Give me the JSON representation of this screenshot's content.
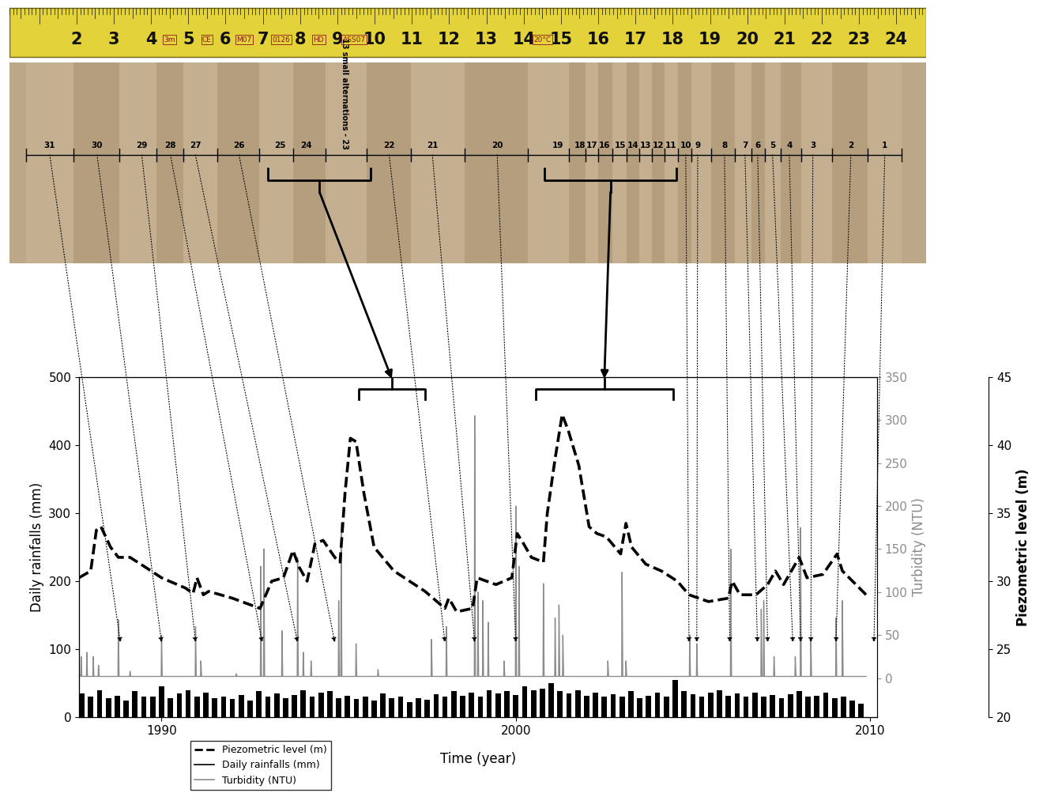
{
  "chart_data": {
    "type": "line",
    "x_label": "Time (year)",
    "y_label": "Daily rainfalls (mm)",
    "y2_label": "Turbidity (NTU)",
    "y3_label": "Piezometric level (m)",
    "xlim": [
      1987.67,
      2010.2
    ],
    "xticks": [
      1990,
      2000,
      2010
    ],
    "ylim": [
      0,
      500
    ],
    "yticks": [
      0,
      100,
      200,
      300,
      400,
      500
    ],
    "y2lim": [
      -45.5,
      350
    ],
    "y2ticks": [
      0,
      50,
      100,
      150,
      200,
      250,
      300,
      350
    ],
    "y3lim": [
      20,
      45
    ],
    "y3ticks": [
      20,
      25,
      30,
      35,
      40,
      45
    ],
    "legend": "lower left",
    "series": [
      {
        "name": "Piezometric level (m)",
        "type": "line",
        "line_style": "dashed",
        "color": "#000000",
        "axis": "y3",
        "x": [
          1987.67,
          1988.0,
          1988.16,
          1988.29,
          1988.56,
          1988.78,
          1989.11,
          1989.56,
          1990.0,
          1990.22,
          1990.67,
          1990.89,
          1991.0,
          1991.18,
          1991.33,
          1992.0,
          1992.78,
          1993.11,
          1993.44,
          1993.71,
          1993.89,
          1994.11,
          1994.33,
          1994.56,
          1994.89,
          1995.04,
          1995.18,
          1995.33,
          1995.49,
          1995.71,
          1996.0,
          1996.56,
          1997.44,
          1998.0,
          1998.11,
          1998.33,
          1998.78,
          1998.91,
          1999.44,
          1999.89,
          2000.04,
          2000.22,
          2000.44,
          2000.78,
          2000.89,
          2001.11,
          2001.31,
          2001.49,
          2001.78,
          2002.07,
          2002.29,
          2002.56,
          2002.96,
          2003.11,
          2003.27,
          2003.67,
          2004.11,
          2004.56,
          2004.89,
          2005.44,
          2006.0,
          2006.11,
          2006.33,
          2006.78,
          2007.11,
          2007.33,
          2007.56,
          2008.0,
          2008.22,
          2008.67,
          2009.07,
          2009.22,
          2009.89
        ],
        "values": [
          30.25,
          30.75,
          33.75,
          34.0,
          32.5,
          31.75,
          31.75,
          31.0,
          30.25,
          30.0,
          29.5,
          29.1,
          30.25,
          29.0,
          29.25,
          28.75,
          28.0,
          30.0,
          30.25,
          32.25,
          31.0,
          30.0,
          32.75,
          33.0,
          31.75,
          31.4,
          36.5,
          40.5,
          40.25,
          36.5,
          32.5,
          30.75,
          29.25,
          28.0,
          28.75,
          27.75,
          28.0,
          30.25,
          29.75,
          30.25,
          33.5,
          32.75,
          31.75,
          31.4,
          35.0,
          39.0,
          42.25,
          41.0,
          38.5,
          34.0,
          33.5,
          33.25,
          32.0,
          34.25,
          32.5,
          31.25,
          30.75,
          30.0,
          29.0,
          28.5,
          28.75,
          30.0,
          29.0,
          29.0,
          29.75,
          30.75,
          29.75,
          31.75,
          30.25,
          30.5,
          32.0,
          30.75,
          29.0
        ]
      },
      {
        "name": "Daily rainfalls (mm)",
        "type": "bar",
        "line_style": "solid",
        "color": "#000000",
        "axis": "y",
        "x": [
          1987.75,
          1988.0,
          1988.25,
          1988.5,
          1988.75,
          1989.0,
          1989.25,
          1989.5,
          1989.75,
          1990.0,
          1990.25,
          1990.5,
          1990.75,
          1991.0,
          1991.25,
          1991.5,
          1991.75,
          1992.0,
          1992.25,
          1992.5,
          1992.75,
          1993.0,
          1993.25,
          1993.5,
          1993.75,
          1994.0,
          1994.25,
          1994.5,
          1994.75,
          1995.0,
          1995.25,
          1995.5,
          1995.75,
          1996.0,
          1996.25,
          1996.5,
          1996.75,
          1997.0,
          1997.25,
          1997.5,
          1997.75,
          1998.0,
          1998.25,
          1998.5,
          1998.75,
          1999.0,
          1999.25,
          1999.5,
          1999.75,
          2000.0,
          2000.25,
          2000.5,
          2000.75,
          2001.0,
          2001.25,
          2001.5,
          2001.75,
          2002.0,
          2002.25,
          2002.5,
          2002.75,
          2003.0,
          2003.25,
          2003.5,
          2003.75,
          2004.0,
          2004.25,
          2004.5,
          2004.75,
          2005.0,
          2005.25,
          2005.5,
          2005.75,
          2006.0,
          2006.25,
          2006.5,
          2006.75,
          2007.0,
          2007.25,
          2007.5,
          2007.75,
          2008.0,
          2008.25,
          2008.5,
          2008.75,
          2009.0,
          2009.25,
          2009.5,
          2009.75
        ],
        "values": [
          35,
          30,
          40,
          28,
          32,
          25,
          38,
          30,
          30,
          45,
          28,
          35,
          40,
          30,
          36,
          28,
          30,
          27,
          33,
          25,
          38,
          30,
          35,
          28,
          33,
          40,
          30,
          36,
          38,
          28,
          32,
          27,
          30,
          25,
          35,
          28,
          30,
          22,
          28,
          26,
          34,
          30,
          38,
          32,
          36,
          30,
          40,
          35,
          38,
          33,
          45,
          40,
          42,
          50,
          38,
          35,
          40,
          32,
          36,
          30,
          34,
          30,
          38,
          28,
          32,
          36,
          30,
          55,
          38,
          34,
          30,
          36,
          40,
          32,
          35,
          30,
          36,
          30,
          33,
          28,
          34,
          38,
          30,
          32,
          36,
          28,
          30,
          25,
          20
        ]
      },
      {
        "name": "Turbidity (NTU)",
        "type": "line",
        "line_style": "solid",
        "color": "#8c8c8c",
        "axis": "y2",
        "x": [
          1987.67,
          1987.72,
          1987.73,
          1987.75,
          1987.88,
          1987.89,
          1987.91,
          1988.06,
          1988.07,
          1988.09,
          1988.21,
          1988.22,
          1988.24,
          1988.77,
          1988.78,
          1988.8,
          1989.1,
          1989.11,
          1989.13,
          1989.99,
          1990.0,
          1990.02,
          1990.95,
          1990.96,
          1990.98,
          1991.1,
          1991.11,
          1991.13,
          1992.1,
          1992.11,
          1992.13,
          1992.79,
          1992.8,
          1992.82,
          1992.88,
          1992.89,
          1992.91,
          1993.39,
          1993.4,
          1993.42,
          1993.83,
          1993.84,
          1993.86,
          1993.99,
          1994.0,
          1994.02,
          1994.21,
          1994.22,
          1994.24,
          1994.99,
          1995.0,
          1995.02,
          1995.06,
          1995.07,
          1995.09,
          1995.48,
          1995.49,
          1995.51,
          1996.1,
          1996.11,
          1996.13,
          1997.61,
          1997.62,
          1997.64,
          1998.03,
          1998.04,
          1998.06,
          1998.83,
          1998.84,
          1998.86,
          1998.92,
          1998.93,
          1998.95,
          1999.06,
          1999.07,
          1999.09,
          1999.21,
          1999.22,
          1999.24,
          1999.66,
          1999.67,
          1999.69,
          1999.99,
          2000.0,
          2000.02,
          2000.08,
          2000.09,
          2000.11,
          2000.77,
          2000.78,
          2000.8,
          2001.1,
          2001.11,
          2001.13,
          2001.21,
          2001.22,
          2001.24,
          2001.32,
          2001.33,
          2001.35,
          2002.59,
          2002.6,
          2002.62,
          2002.99,
          2003.0,
          2003.02,
          2003.1,
          2003.11,
          2003.13,
          2004.9,
          2004.91,
          2004.93,
          2005.1,
          2005.11,
          2005.13,
          2006.06,
          2006.07,
          2006.09,
          2006.92,
          2006.93,
          2006.95,
          2006.99,
          2007.0,
          2007.02,
          2007.28,
          2007.29,
          2007.31,
          2007.88,
          2007.89,
          2007.91,
          2008.03,
          2008.04,
          2008.06,
          2008.32,
          2008.33,
          2008.35,
          2009.03,
          2009.04,
          2009.06,
          2009.21,
          2009.22,
          2009.24,
          2009.89
        ],
        "values": [
          5,
          2,
          25,
          2,
          2,
          30,
          2,
          2,
          25,
          2,
          2,
          15,
          2,
          2,
          68,
          2,
          2,
          8,
          2,
          2,
          50,
          2,
          2,
          60,
          2,
          2,
          20,
          2,
          2,
          5,
          2,
          2,
          130,
          2,
          2,
          150,
          2,
          2,
          55,
          2,
          2,
          140,
          2,
          2,
          30,
          2,
          2,
          20,
          2,
          2,
          90,
          2,
          2,
          180,
          2,
          2,
          40,
          2,
          2,
          10,
          2,
          2,
          45,
          2,
          2,
          60,
          2,
          2,
          305,
          2,
          2,
          100,
          2,
          2,
          90,
          2,
          2,
          65,
          2,
          2,
          20,
          2,
          2,
          200,
          2,
          2,
          130,
          2,
          2,
          110,
          2,
          2,
          70,
          2,
          2,
          85,
          2,
          2,
          50,
          2,
          2,
          20,
          2,
          2,
          123,
          2,
          2,
          20,
          2,
          2,
          50,
          2,
          2,
          40,
          2,
          2,
          150,
          2,
          2,
          80,
          2,
          2,
          90,
          2,
          2,
          25,
          2,
          2,
          25,
          2,
          2,
          175,
          2,
          2,
          45,
          2,
          2,
          70,
          2,
          2,
          90,
          2,
          2
        ]
      }
    ]
  },
  "core": {
    "tape_range_cm": [
      0.2,
      24.8
    ],
    "tape_ticks": [
      2,
      3,
      4,
      5,
      6,
      7,
      8,
      9,
      10,
      11,
      12,
      13,
      14,
      15,
      16,
      17,
      18,
      19,
      20,
      21,
      22,
      23,
      24
    ],
    "tape_marks": [
      {
        "label": "3m",
        "position_cm": 4.5
      },
      {
        "label": "CE",
        "position_cm": 5.5
      },
      {
        "label": "M07",
        "position_cm": 6.5
      },
      {
        "label": "0126",
        "position_cm": 7.5
      },
      {
        "label": "HD",
        "position_cm": 8.5
      },
      {
        "label": "ASS07",
        "position_cm": 9.45
      },
      {
        "label": "20°C",
        "position_cm": 14.5
      }
    ],
    "layers": [
      {
        "label": "31",
        "position_cm": 1.28,
        "date": 1988.84
      },
      {
        "label": "30",
        "position_cm": 2.55,
        "date": 1990.0
      },
      {
        "label": "29",
        "position_cm": 3.75,
        "date": 1990.96
      },
      {
        "label": "28",
        "position_cm": 4.52,
        "date": 1992.84
      },
      {
        "label": "27",
        "position_cm": 5.19,
        "date": 1993.84
      },
      {
        "label": "26",
        "position_cm": 6.36,
        "date": 1994.89
      },
      {
        "label": "25",
        "position_cm": 7.46,
        "date": null
      },
      {
        "label": "24",
        "position_cm": 8.16,
        "date": null
      },
      {
        "label": "13 small alternations - 23",
        "position_cm": 9.2,
        "date": null
      },
      {
        "label": "22",
        "position_cm": 10.39,
        "date": 1998.0
      },
      {
        "label": "21",
        "position_cm": 11.55,
        "date": 1998.84
      },
      {
        "label": "20",
        "position_cm": 13.29,
        "date": 2000.0
      },
      {
        "label": "19",
        "position_cm": 14.92,
        "date": null
      },
      {
        "label": "18",
        "position_cm": 15.51,
        "date": null
      },
      {
        "label": "17",
        "position_cm": 15.83,
        "date": null
      },
      {
        "label": "16",
        "position_cm": 16.17,
        "date": null
      },
      {
        "label": "15",
        "position_cm": 16.59,
        "date": null
      },
      {
        "label": "14",
        "position_cm": 16.93,
        "date": null
      },
      {
        "label": "13",
        "position_cm": 17.27,
        "date": null
      },
      {
        "label": "12",
        "position_cm": 17.61,
        "date": null
      },
      {
        "label": "11",
        "position_cm": 17.95,
        "date": null
      },
      {
        "label": "10",
        "position_cm": 18.35,
        "date": 2004.89
      },
      {
        "label": "9",
        "position_cm": 18.67,
        "date": 2005.11
      },
      {
        "label": "8",
        "position_cm": 19.39,
        "date": 2006.04
      },
      {
        "label": "7",
        "position_cm": 19.94,
        "date": 2006.82
      },
      {
        "label": "6",
        "position_cm": 20.28,
        "date": 2007.11
      },
      {
        "label": "5",
        "position_cm": 20.68,
        "date": 2007.82
      },
      {
        "label": "4",
        "position_cm": 21.13,
        "date": 2008.04
      },
      {
        "label": "3",
        "position_cm": 21.76,
        "date": 2008.33
      },
      {
        "label": "2",
        "position_cm": 22.78,
        "date": 2009.04
      },
      {
        "label": "1",
        "position_cm": 23.69,
        "date": 2010.11
      }
    ],
    "groups": [
      {
        "layers": [
          "25",
          "24",
          "13 small alternations - 23"
        ],
        "span_cm": [
          7.14,
          9.9
        ],
        "dates": [
          1995.56,
          1997.44
        ]
      },
      {
        "layers": [
          "19",
          "18",
          "17",
          "16",
          "15",
          "14",
          "13",
          "12",
          "11"
        ],
        "span_cm": [
          14.56,
          18.1
        ],
        "dates": [
          2000.56,
          2004.44
        ]
      }
    ]
  }
}
